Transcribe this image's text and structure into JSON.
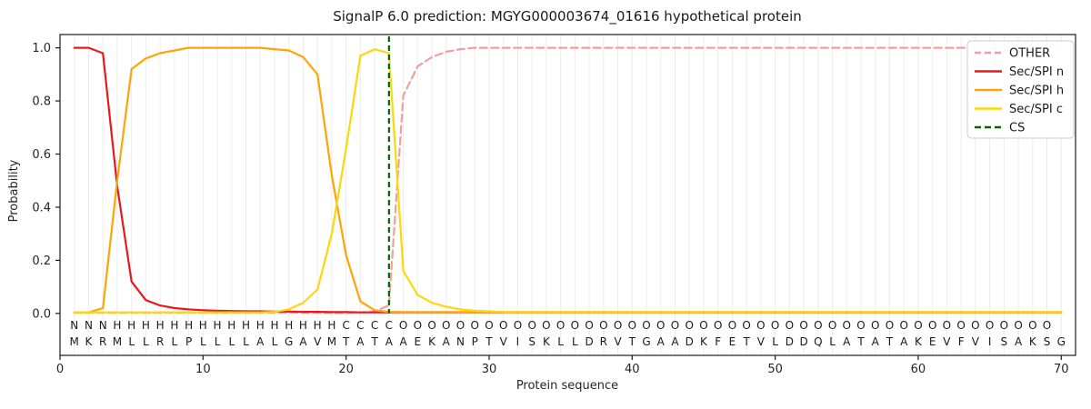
{
  "chart_data": {
    "type": "line",
    "title": "SignalP 6.0 prediction: MGYG000003674_01616 hypothetical protein",
    "xlabel": "Protein sequence",
    "ylabel": "Probability",
    "x_ticks": [
      0,
      10,
      20,
      30,
      40,
      50,
      60,
      70
    ],
    "y_ticks": [
      "0.0",
      "0.2",
      "0.4",
      "0.6",
      "0.8",
      "1.0"
    ],
    "xlim": [
      0,
      71
    ],
    "ylim": [
      -0.158,
      1.05
    ],
    "grid": "vertical gridline at every residue position, no horizontal grid",
    "legend_position": "upper right",
    "x": [
      1,
      2,
      3,
      4,
      5,
      6,
      7,
      8,
      9,
      10,
      11,
      12,
      13,
      14,
      15,
      16,
      17,
      18,
      19,
      20,
      21,
      22,
      23,
      24,
      25,
      26,
      27,
      28,
      29,
      30,
      31,
      32,
      33,
      34,
      35,
      36,
      37,
      38,
      39,
      40,
      41,
      42,
      43,
      44,
      45,
      46,
      47,
      48,
      49,
      50,
      51,
      52,
      53,
      54,
      55,
      56,
      57,
      58,
      59,
      60,
      61,
      62,
      63,
      64,
      65,
      66,
      67,
      68,
      69,
      70
    ],
    "series": [
      {
        "name": "OTHER",
        "color": "#f29e9e",
        "dash": true,
        "values": [
          0.003,
          0.003,
          0.003,
          0.003,
          0.003,
          0.003,
          0.003,
          0.003,
          0.003,
          0.003,
          0.003,
          0.003,
          0.003,
          0.003,
          0.003,
          0.003,
          0.003,
          0.003,
          0.003,
          0.003,
          0.004,
          0.008,
          0.03,
          0.82,
          0.93,
          0.965,
          0.985,
          0.995,
          1.0,
          1.0,
          1.0,
          1.0,
          1.0,
          1.0,
          1.0,
          1.0,
          1.0,
          1.0,
          1.0,
          1.0,
          1.0,
          1.0,
          1.0,
          1.0,
          1.0,
          1.0,
          1.0,
          1.0,
          1.0,
          1.0,
          1.0,
          1.0,
          1.0,
          1.0,
          1.0,
          1.0,
          1.0,
          1.0,
          1.0,
          1.0,
          1.0,
          1.0,
          1.0,
          1.0,
          1.0,
          1.0,
          1.0,
          1.0,
          1.0,
          1.0
        ]
      },
      {
        "name": "Sec/SPI n",
        "color": "#e8191c",
        "dash": false,
        "values": [
          1.0,
          1.0,
          0.98,
          0.48,
          0.12,
          0.05,
          0.03,
          0.02,
          0.015,
          0.012,
          0.01,
          0.009,
          0.008,
          0.008,
          0.007,
          0.007,
          0.006,
          0.006,
          0.005,
          0.005,
          0.004,
          0.004,
          0.004,
          0.004,
          0.004,
          0.004,
          0.004,
          0.004,
          0.004,
          0.004,
          0.004,
          0.004,
          0.004,
          0.004,
          0.004,
          0.004,
          0.004,
          0.004,
          0.004,
          0.004,
          0.004,
          0.004,
          0.004,
          0.004,
          0.004,
          0.004,
          0.004,
          0.004,
          0.004,
          0.004,
          0.004,
          0.004,
          0.004,
          0.004,
          0.004,
          0.004,
          0.004,
          0.004,
          0.004,
          0.004,
          0.004,
          0.004,
          0.004,
          0.004,
          0.004,
          0.004,
          0.004,
          0.004,
          0.004,
          0.004
        ]
      },
      {
        "name": "Sec/SPI h",
        "color": "#ffa408",
        "dash": false,
        "values": [
          0.004,
          0.004,
          0.02,
          0.5,
          0.92,
          0.96,
          0.98,
          0.99,
          1.0,
          1.0,
          1.0,
          1.0,
          1.0,
          1.0,
          0.995,
          0.99,
          0.965,
          0.9,
          0.52,
          0.22,
          0.045,
          0.012,
          0.006,
          0.005,
          0.005,
          0.005,
          0.005,
          0.005,
          0.005,
          0.005,
          0.005,
          0.005,
          0.005,
          0.005,
          0.005,
          0.005,
          0.005,
          0.005,
          0.005,
          0.005,
          0.005,
          0.005,
          0.005,
          0.005,
          0.005,
          0.005,
          0.005,
          0.005,
          0.005,
          0.005,
          0.005,
          0.005,
          0.005,
          0.005,
          0.005,
          0.005,
          0.005,
          0.005,
          0.005,
          0.005,
          0.005,
          0.005,
          0.005,
          0.005,
          0.005,
          0.005,
          0.005,
          0.005,
          0.005,
          0.005
        ]
      },
      {
        "name": "Sec/SPI c",
        "color": "#ffd60b",
        "dash": false,
        "values": [
          0.004,
          0.004,
          0.004,
          0.004,
          0.004,
          0.004,
          0.004,
          0.004,
          0.004,
          0.004,
          0.004,
          0.004,
          0.004,
          0.004,
          0.006,
          0.015,
          0.04,
          0.09,
          0.3,
          0.62,
          0.97,
          0.995,
          0.98,
          0.16,
          0.07,
          0.04,
          0.025,
          0.015,
          0.01,
          0.008,
          0.005,
          0.005,
          0.005,
          0.005,
          0.005,
          0.005,
          0.005,
          0.005,
          0.005,
          0.005,
          0.005,
          0.005,
          0.005,
          0.005,
          0.005,
          0.005,
          0.005,
          0.005,
          0.005,
          0.005,
          0.005,
          0.005,
          0.005,
          0.005,
          0.005,
          0.005,
          0.005,
          0.005,
          0.005,
          0.005,
          0.005,
          0.005,
          0.005,
          0.005,
          0.005,
          0.005,
          0.005,
          0.005,
          0.005,
          0.005
        ]
      }
    ],
    "cs_marker": {
      "name": "CS",
      "position": 23,
      "color": "#046404",
      "dash": true
    },
    "legend": [
      {
        "label": "OTHER",
        "color": "#f29e9e",
        "dash": true
      },
      {
        "label": "Sec/SPI n",
        "color": "#e8191c",
        "dash": false
      },
      {
        "label": "Sec/SPI h",
        "color": "#ffa408",
        "dash": false
      },
      {
        "label": "Sec/SPI c",
        "color": "#ffd60b",
        "dash": false
      },
      {
        "label": "CS",
        "color": "#046404",
        "dash": true
      }
    ],
    "sequence": "MKRMLLRLPLLLLALGAVMTATAAEKANPTVISKLLDRVTGAADKFETVLDDQLATATAKEVFVISAKSG",
    "regions": "NNNHHHHHHHHHHHHHHHHCCCCOOOOOOOOOOOOOOOOOOOOOOOOOOOOOOOOOOOOOOOOOOOOOO",
    "region_colors": {
      "N": "#e8191c",
      "H": "#ffa408",
      "C": "#ffd60b",
      "O": "#8c8c8c"
    },
    "grid_color": "#ececec",
    "spine_color": "#1a1a1a"
  }
}
